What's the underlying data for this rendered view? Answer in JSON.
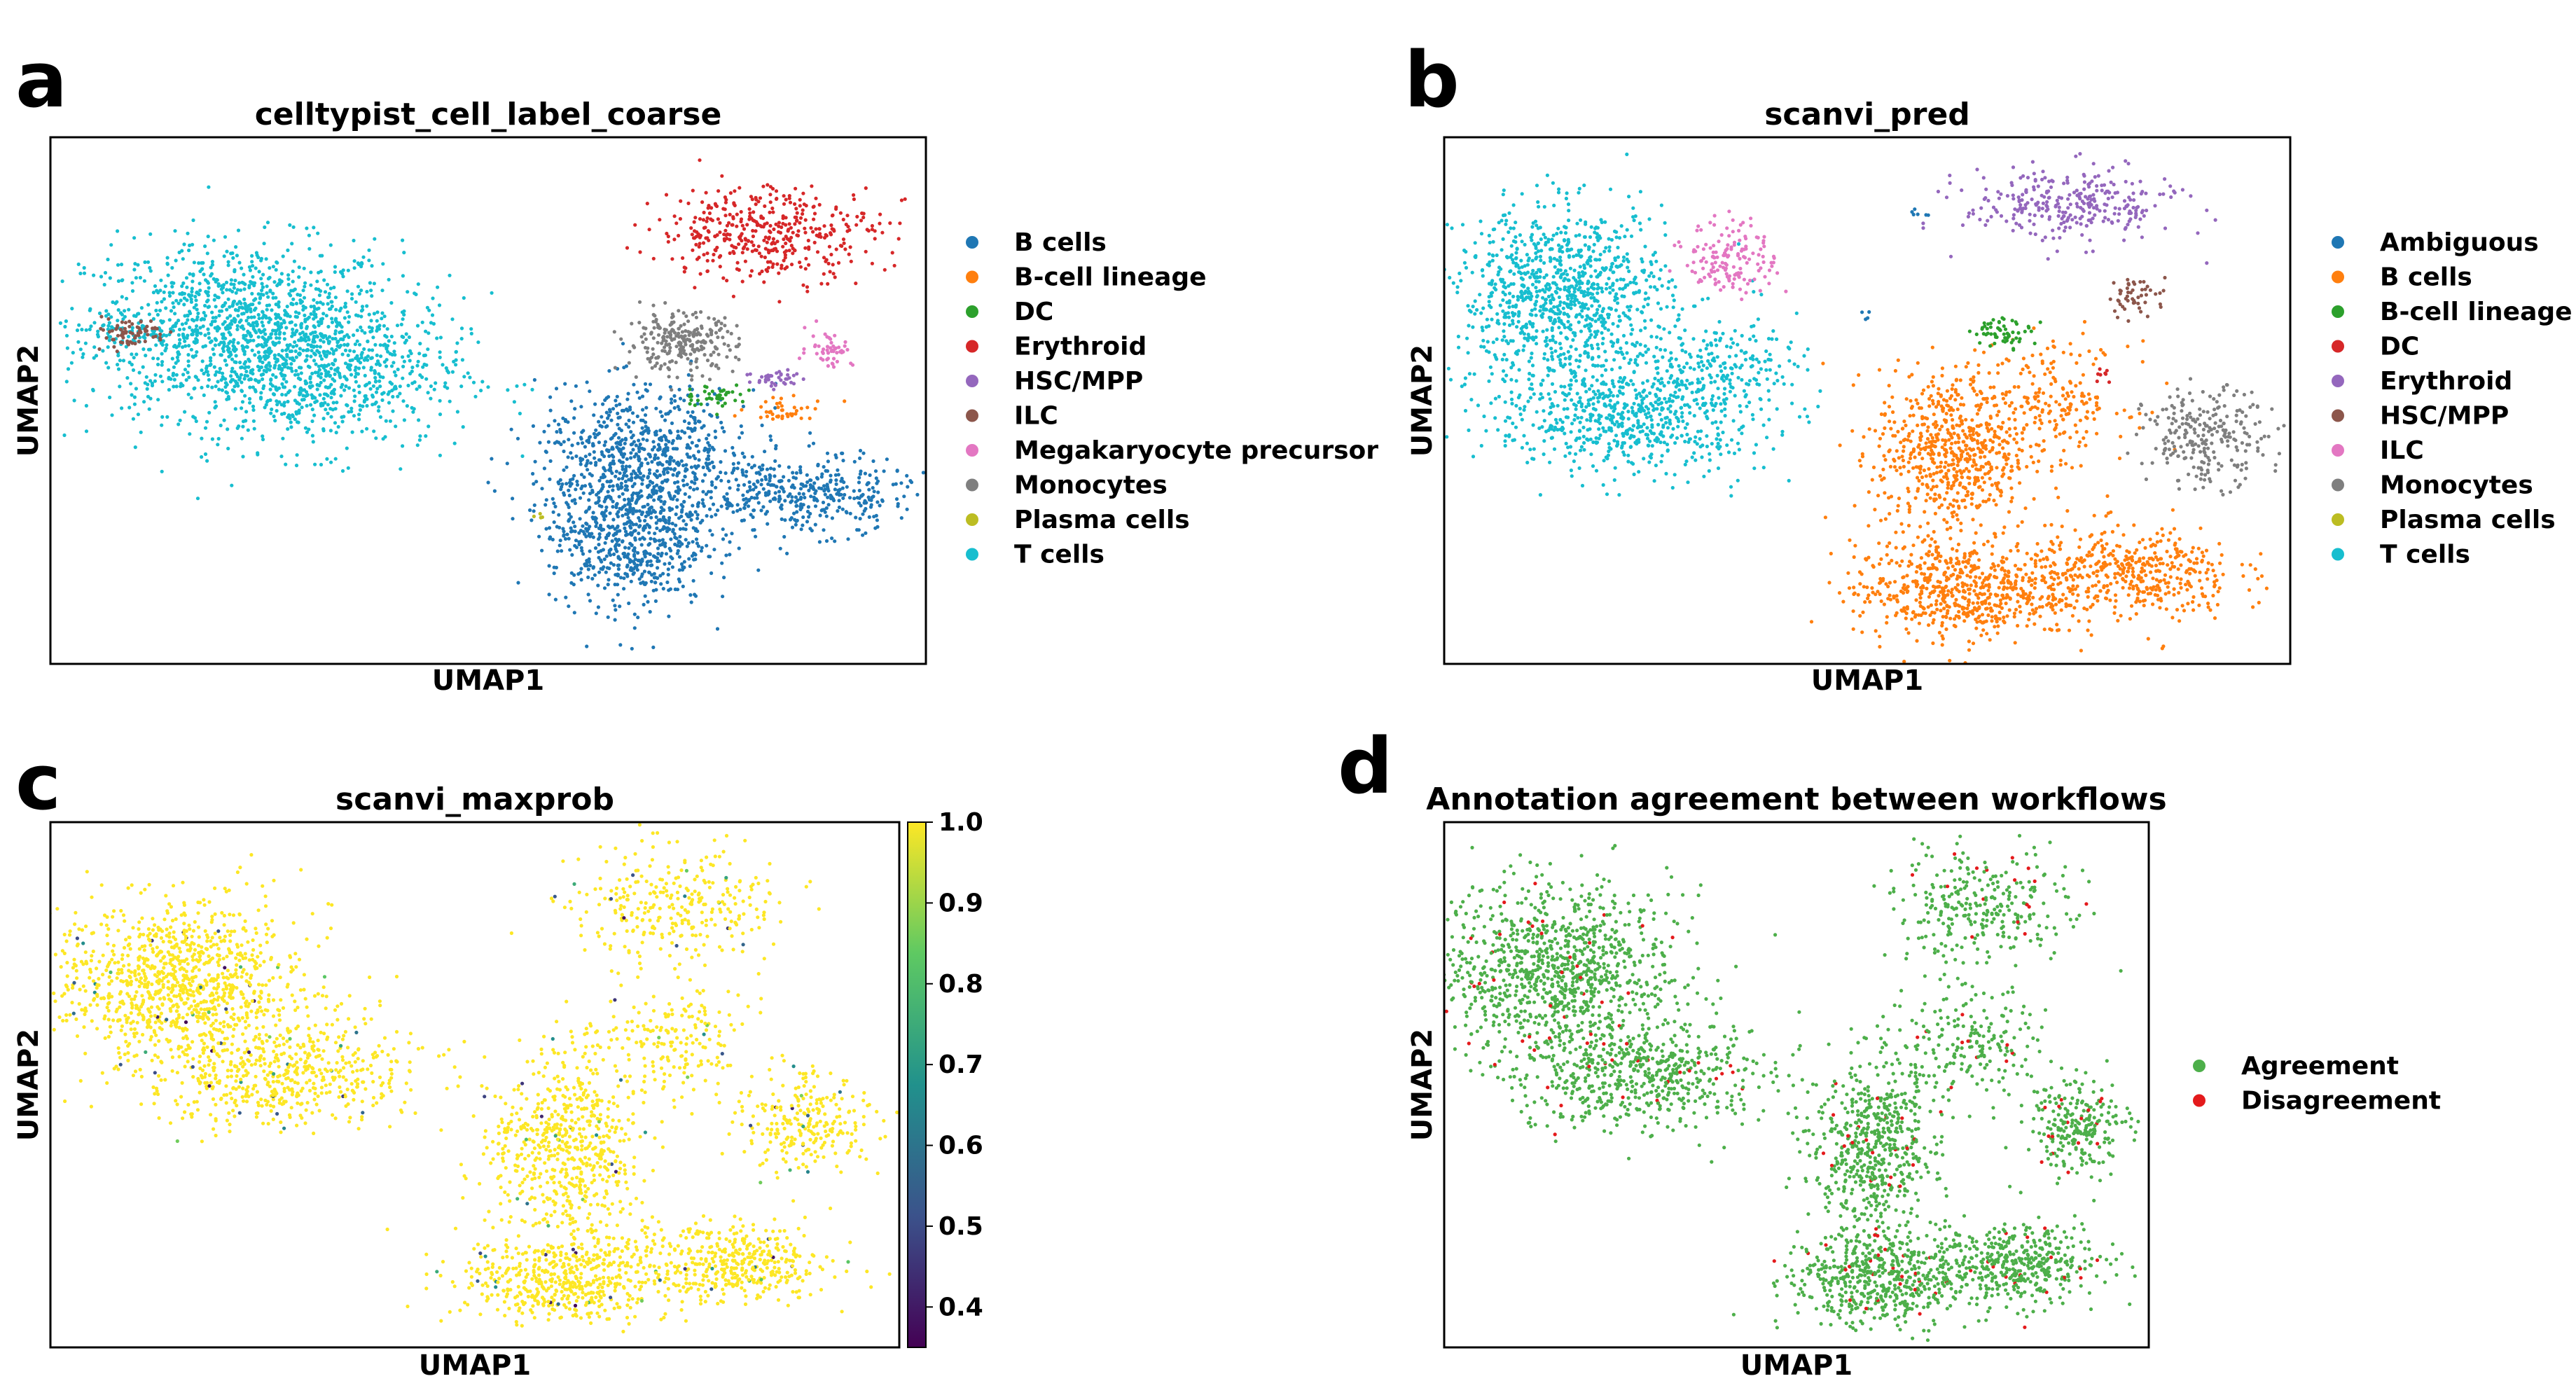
{
  "figure": {
    "panel_letters": [
      "a",
      "b",
      "c",
      "d"
    ]
  },
  "chart_data": [
    {
      "panel": "a",
      "type": "scatter",
      "title": "celltypist_cell_label_coarse",
      "xlabel": "UMAP1",
      "ylabel": "UMAP2",
      "grid": false,
      "legend": "right",
      "legend_entries": [
        {
          "label": "B cells",
          "color": "#1f77b4"
        },
        {
          "label": "B-cell lineage",
          "color": "#ff7f0e"
        },
        {
          "label": "DC",
          "color": "#2ca02c"
        },
        {
          "label": "Erythroid",
          "color": "#d62728"
        },
        {
          "label": "HSC/MPP",
          "color": "#9467bd"
        },
        {
          "label": "ILC",
          "color": "#8c564b"
        },
        {
          "label": "Megakaryocyte precursor",
          "color": "#e377c2"
        },
        {
          "label": "Monocytes",
          "color": "#7f7f7f"
        },
        {
          "label": "Plasma cells",
          "color": "#bcbd22"
        },
        {
          "label": "T cells",
          "color": "#17becf"
        }
      ],
      "clusters": [
        {
          "label": "T cells",
          "color": "#17becf",
          "x": 0.22,
          "y": 0.64,
          "sx": 0.1,
          "sy": 0.09,
          "n": 1100
        },
        {
          "label": "T cells",
          "color": "#17becf",
          "x": 0.31,
          "y": 0.55,
          "sx": 0.09,
          "sy": 0.08,
          "n": 700
        },
        {
          "label": "T cells",
          "color": "#17becf",
          "x": 0.1,
          "y": 0.63,
          "sx": 0.04,
          "sy": 0.03,
          "n": 80
        },
        {
          "label": "ILC",
          "color": "#8c564b",
          "x": 0.09,
          "y": 0.63,
          "sx": 0.025,
          "sy": 0.015,
          "n": 70
        },
        {
          "label": "B cells",
          "color": "#1f77b4",
          "x": 0.66,
          "y": 0.25,
          "sx": 0.05,
          "sy": 0.08,
          "n": 700
        },
        {
          "label": "B cells",
          "color": "#1f77b4",
          "x": 0.68,
          "y": 0.4,
          "sx": 0.07,
          "sy": 0.07,
          "n": 600
        },
        {
          "label": "B cells",
          "color": "#1f77b4",
          "x": 0.86,
          "y": 0.32,
          "sx": 0.07,
          "sy": 0.04,
          "n": 400
        },
        {
          "label": "Erythroid",
          "color": "#d62728",
          "x": 0.82,
          "y": 0.82,
          "sx": 0.07,
          "sy": 0.05,
          "n": 420
        },
        {
          "label": "Monocytes",
          "color": "#7f7f7f",
          "x": 0.72,
          "y": 0.61,
          "sx": 0.035,
          "sy": 0.03,
          "n": 250
        },
        {
          "label": "HSC/MPP",
          "color": "#9467bd",
          "x": 0.83,
          "y": 0.54,
          "sx": 0.02,
          "sy": 0.012,
          "n": 40
        },
        {
          "label": "Megakaryocyte precursor",
          "color": "#e377c2",
          "x": 0.89,
          "y": 0.6,
          "sx": 0.015,
          "sy": 0.02,
          "n": 50
        },
        {
          "label": "DC",
          "color": "#2ca02c",
          "x": 0.76,
          "y": 0.51,
          "sx": 0.02,
          "sy": 0.012,
          "n": 40
        },
        {
          "label": "B-cell lineage",
          "color": "#ff7f0e",
          "x": 0.84,
          "y": 0.48,
          "sx": 0.03,
          "sy": 0.012,
          "n": 40
        },
        {
          "label": "Plasma cells",
          "color": "#bcbd22",
          "x": 0.56,
          "y": 0.28,
          "sx": 0.005,
          "sy": 0.005,
          "n": 4
        }
      ]
    },
    {
      "panel": "b",
      "type": "scatter",
      "title": "scanvi_pred",
      "xlabel": "UMAP1",
      "ylabel": "UMAP2",
      "grid": false,
      "legend": "right",
      "legend_entries": [
        {
          "label": "Ambiguous",
          "color": "#1f77b4"
        },
        {
          "label": "B cells",
          "color": "#ff7f0e"
        },
        {
          "label": "B-cell lineage",
          "color": "#2ca02c"
        },
        {
          "label": "DC",
          "color": "#d62728"
        },
        {
          "label": "Erythroid",
          "color": "#9467bd"
        },
        {
          "label": "HSC/MPP",
          "color": "#8c564b"
        },
        {
          "label": "ILC",
          "color": "#e377c2"
        },
        {
          "label": "Monocytes",
          "color": "#7f7f7f"
        },
        {
          "label": "Plasma cells",
          "color": "#bcbd22"
        },
        {
          "label": "T cells",
          "color": "#17becf"
        }
      ],
      "clusters": [
        {
          "label": "T cells",
          "color": "#17becf",
          "x": 0.14,
          "y": 0.7,
          "sx": 0.07,
          "sy": 0.09,
          "n": 1000
        },
        {
          "label": "T cells",
          "color": "#17becf",
          "x": 0.22,
          "y": 0.47,
          "sx": 0.09,
          "sy": 0.06,
          "n": 700
        },
        {
          "label": "T cells",
          "color": "#17becf",
          "x": 0.33,
          "y": 0.58,
          "sx": 0.05,
          "sy": 0.04,
          "n": 150
        },
        {
          "label": "ILC",
          "color": "#e377c2",
          "x": 0.34,
          "y": 0.77,
          "sx": 0.03,
          "sy": 0.04,
          "n": 150
        },
        {
          "label": "B cells",
          "color": "#ff7f0e",
          "x": 0.6,
          "y": 0.4,
          "sx": 0.05,
          "sy": 0.09,
          "n": 650
        },
        {
          "label": "B cells",
          "color": "#ff7f0e",
          "x": 0.61,
          "y": 0.14,
          "sx": 0.07,
          "sy": 0.05,
          "n": 600
        },
        {
          "label": "B cells",
          "color": "#ff7f0e",
          "x": 0.81,
          "y": 0.17,
          "sx": 0.07,
          "sy": 0.05,
          "n": 450
        },
        {
          "label": "B cells",
          "color": "#ff7f0e",
          "x": 0.72,
          "y": 0.5,
          "sx": 0.05,
          "sy": 0.06,
          "n": 200
        },
        {
          "label": "Erythroid",
          "color": "#9467bd",
          "x": 0.74,
          "y": 0.87,
          "sx": 0.07,
          "sy": 0.04,
          "n": 300
        },
        {
          "label": "Monocytes",
          "color": "#7f7f7f",
          "x": 0.9,
          "y": 0.43,
          "sx": 0.04,
          "sy": 0.05,
          "n": 250
        },
        {
          "label": "HSC/MPP",
          "color": "#8c564b",
          "x": 0.82,
          "y": 0.7,
          "sx": 0.02,
          "sy": 0.02,
          "n": 50
        },
        {
          "label": "B-cell lineage",
          "color": "#2ca02c",
          "x": 0.66,
          "y": 0.63,
          "sx": 0.02,
          "sy": 0.015,
          "n": 60
        },
        {
          "label": "DC",
          "color": "#d62728",
          "x": 0.78,
          "y": 0.55,
          "sx": 0.006,
          "sy": 0.01,
          "n": 8
        },
        {
          "label": "Ambiguous",
          "color": "#1f77b4",
          "x": 0.56,
          "y": 0.86,
          "sx": 0.006,
          "sy": 0.01,
          "n": 6
        },
        {
          "label": "Ambiguous",
          "color": "#1f77b4",
          "x": 0.5,
          "y": 0.66,
          "sx": 0.005,
          "sy": 0.005,
          "n": 4
        }
      ]
    },
    {
      "panel": "c",
      "type": "scatter",
      "title": "scanvi_maxprob",
      "xlabel": "UMAP1",
      "ylabel": "UMAP2",
      "grid": false,
      "legend": "colorbar-right",
      "colorbar": {
        "min": 0.35,
        "max": 1.0,
        "ticks": [
          "1.0",
          "0.9",
          "0.8",
          "0.7",
          "0.6",
          "0.5",
          "0.4"
        ],
        "tick_values": [
          1.0,
          0.9,
          0.8,
          0.7,
          0.6,
          0.5,
          0.4
        ],
        "colors": [
          "#440154",
          "#3b528b",
          "#21918c",
          "#5ec962",
          "#fde725"
        ]
      },
      "base_value": 1.0,
      "low_fraction": 0.025,
      "clusters": [
        {
          "x": 0.15,
          "y": 0.7,
          "sx": 0.08,
          "sy": 0.08,
          "n": 1000
        },
        {
          "x": 0.27,
          "y": 0.52,
          "sx": 0.09,
          "sy": 0.06,
          "n": 600
        },
        {
          "x": 0.61,
          "y": 0.38,
          "sx": 0.05,
          "sy": 0.09,
          "n": 600
        },
        {
          "x": 0.61,
          "y": 0.13,
          "sx": 0.07,
          "sy": 0.05,
          "n": 550
        },
        {
          "x": 0.81,
          "y": 0.16,
          "sx": 0.06,
          "sy": 0.04,
          "n": 400
        },
        {
          "x": 0.74,
          "y": 0.84,
          "sx": 0.07,
          "sy": 0.06,
          "n": 300
        },
        {
          "x": 0.89,
          "y": 0.42,
          "sx": 0.04,
          "sy": 0.05,
          "n": 250
        },
        {
          "x": 0.73,
          "y": 0.58,
          "sx": 0.06,
          "sy": 0.06,
          "n": 200
        }
      ]
    },
    {
      "panel": "d",
      "type": "scatter",
      "title": "Annotation agreement between workflows",
      "xlabel": "UMAP1",
      "ylabel": "UMAP2",
      "grid": false,
      "legend": "right",
      "legend_entries": [
        {
          "label": "Agreement",
          "color": "#4daf4a"
        },
        {
          "label": "Disagreement",
          "color": "#e41a1c"
        }
      ],
      "disagreement_fraction": 0.04,
      "clusters": [
        {
          "x": 0.16,
          "y": 0.72,
          "sx": 0.09,
          "sy": 0.09,
          "n": 1000
        },
        {
          "x": 0.28,
          "y": 0.52,
          "sx": 0.1,
          "sy": 0.06,
          "n": 600
        },
        {
          "x": 0.61,
          "y": 0.38,
          "sx": 0.05,
          "sy": 0.09,
          "n": 600
        },
        {
          "x": 0.62,
          "y": 0.13,
          "sx": 0.07,
          "sy": 0.05,
          "n": 550
        },
        {
          "x": 0.82,
          "y": 0.16,
          "sx": 0.06,
          "sy": 0.04,
          "n": 400
        },
        {
          "x": 0.76,
          "y": 0.84,
          "sx": 0.07,
          "sy": 0.06,
          "n": 300
        },
        {
          "x": 0.9,
          "y": 0.42,
          "sx": 0.04,
          "sy": 0.05,
          "n": 250
        },
        {
          "x": 0.74,
          "y": 0.58,
          "sx": 0.06,
          "sy": 0.06,
          "n": 200
        }
      ]
    }
  ]
}
